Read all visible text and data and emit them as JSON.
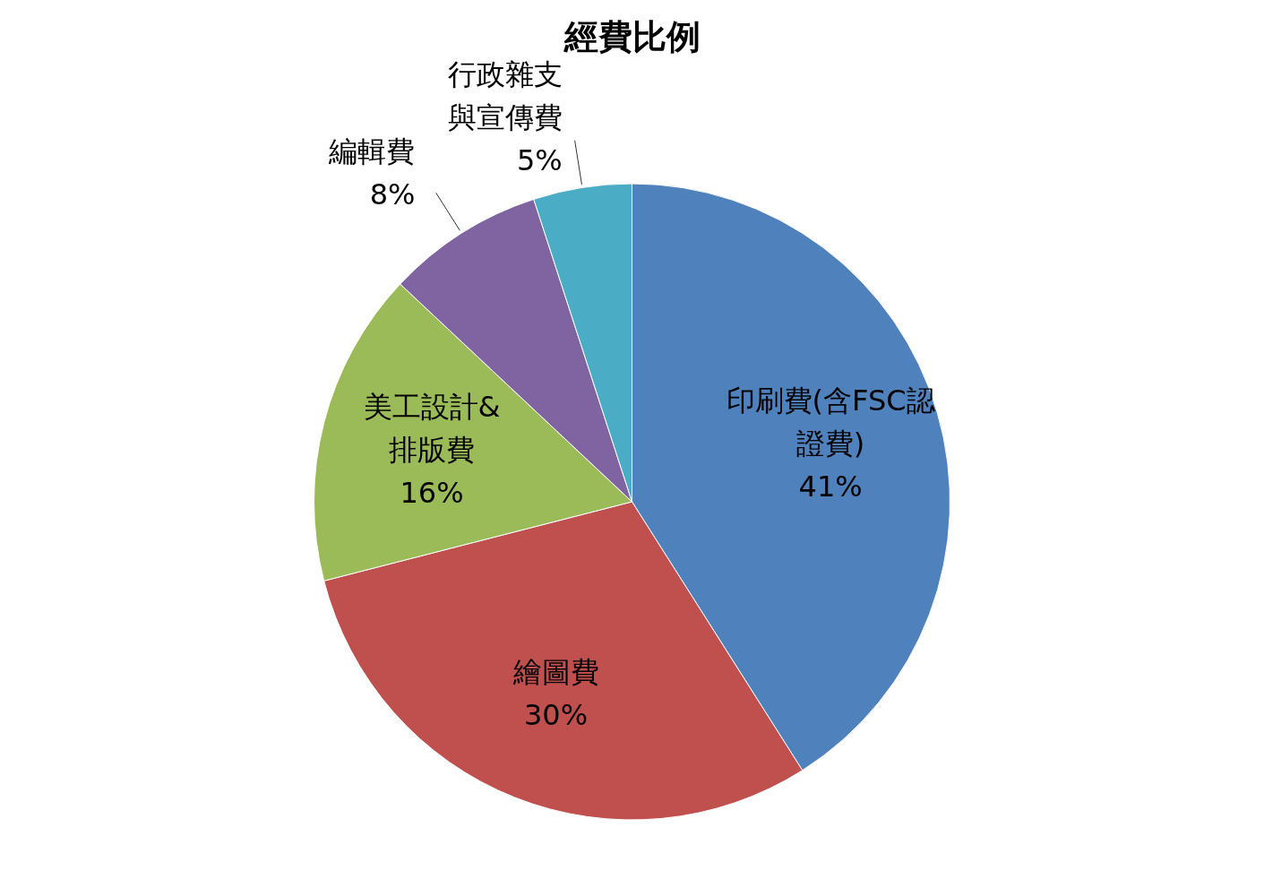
{
  "chart_data": {
    "type": "pie",
    "title": "經費比例",
    "categories": [
      "印刷費(含FSC認證費)",
      "繪圖費",
      "美工設計&排版費",
      "編輯費",
      "行政雜支與宣傳費"
    ],
    "values": [
      41,
      30,
      16,
      8,
      5
    ],
    "colors": [
      "#4f81bd",
      "#c0504d",
      "#9bbb59",
      "#8064a2",
      "#4bacc6"
    ],
    "value_labels": [
      "41%",
      "30%",
      "16%",
      "8%",
      "5%"
    ]
  }
}
